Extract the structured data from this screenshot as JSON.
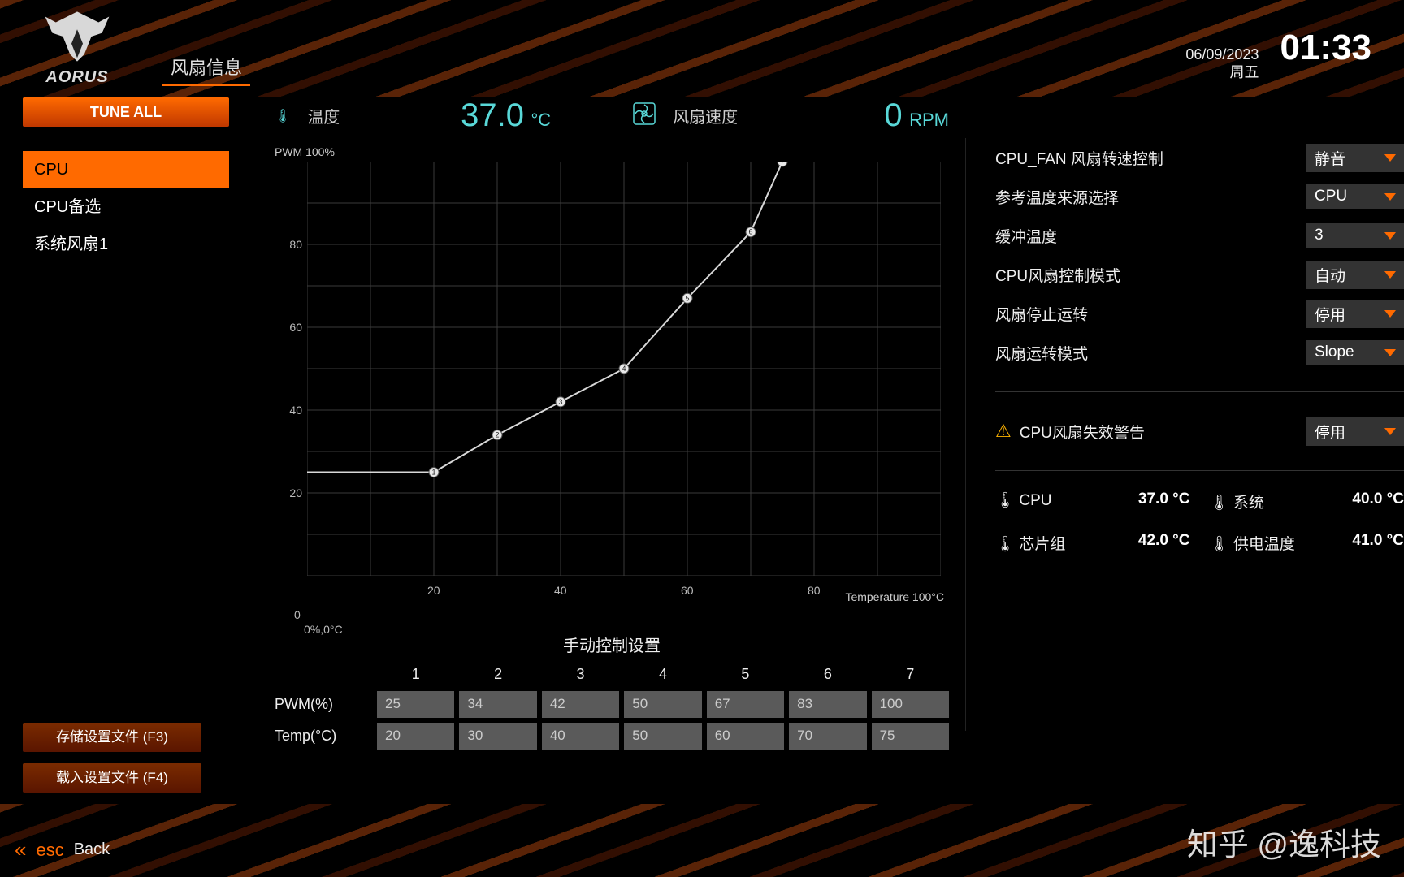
{
  "header": {
    "brand": "AORUS",
    "tab": "风扇信息",
    "date": "06/09/2023",
    "weekday": "周五",
    "time": "01:33"
  },
  "sidebar": {
    "tune_all": "TUNE ALL",
    "fans": [
      "CPU",
      "CPU备选",
      "系统风扇1"
    ],
    "active_index": 0
  },
  "readouts": {
    "temp_label": "温度",
    "temp_value": "37.0",
    "temp_unit": "°C",
    "rpm_label": "风扇速度",
    "rpm_value": "0",
    "rpm_unit": "RPM"
  },
  "chart": {
    "type": "line",
    "y_label": "PWM 100%",
    "x_label_right": "Temperature 100°C",
    "x_label_left": "0%,0°C",
    "xlim": [
      0,
      100
    ],
    "ylim": [
      0,
      100
    ],
    "xtick_step": 20,
    "ytick_step": 20,
    "yticks": [
      20,
      40,
      60,
      80
    ],
    "xticks": [
      20,
      40,
      60,
      80
    ],
    "grid_step": 10,
    "background_color": "#000000",
    "grid_color": "#3a3a3a",
    "line_color": "#d8d8d8",
    "line_width": 2,
    "marker_fill": "#e8e8e8",
    "marker_stroke": "#555555",
    "marker_radius": 6,
    "points": [
      {
        "n": 1,
        "x": 20,
        "y": 25
      },
      {
        "n": 2,
        "x": 30,
        "y": 34
      },
      {
        "n": 3,
        "x": 40,
        "y": 42
      },
      {
        "n": 4,
        "x": 50,
        "y": 50
      },
      {
        "n": 5,
        "x": 60,
        "y": 67
      },
      {
        "n": 6,
        "x": 70,
        "y": 83
      },
      {
        "n": 7,
        "x": 75,
        "y": 100
      }
    ]
  },
  "manual": {
    "title": "手动控制设置",
    "columns": [
      "1",
      "2",
      "3",
      "4",
      "5",
      "6",
      "7"
    ],
    "rows": [
      {
        "label": "PWM(%)",
        "values": [
          "25",
          "34",
          "42",
          "50",
          "67",
          "83",
          "100"
        ]
      },
      {
        "label": "Temp(°C)",
        "values": [
          "20",
          "30",
          "40",
          "50",
          "60",
          "70",
          "75"
        ]
      }
    ]
  },
  "settings": [
    {
      "label": "CPU_FAN 风扇转速控制",
      "value": "静音"
    },
    {
      "label": "参考温度来源选择",
      "value": "CPU"
    },
    {
      "label": "缓冲温度",
      "value": "3"
    },
    {
      "label": "CPU风扇控制模式",
      "value": "自动"
    },
    {
      "label": "风扇停止运转",
      "value": "停用"
    },
    {
      "label": "风扇运转模式",
      "value": "Slope"
    }
  ],
  "warning": {
    "label": "CPU风扇失效警告",
    "value": "停用"
  },
  "temps": [
    {
      "label": "CPU",
      "value": "37.0 °C"
    },
    {
      "label": "系统",
      "value": "40.0 °C"
    },
    {
      "label": "芯片组",
      "value": "42.0 °C"
    },
    {
      "label": "供电温度",
      "value": "41.0 °C"
    }
  ],
  "footer": {
    "save_profile": "存储设置文件 (F3)",
    "load_profile": "载入设置文件 (F4)"
  },
  "bottom": {
    "esc": "esc",
    "back": "Back"
  },
  "watermark": "知乎 @逸科技"
}
